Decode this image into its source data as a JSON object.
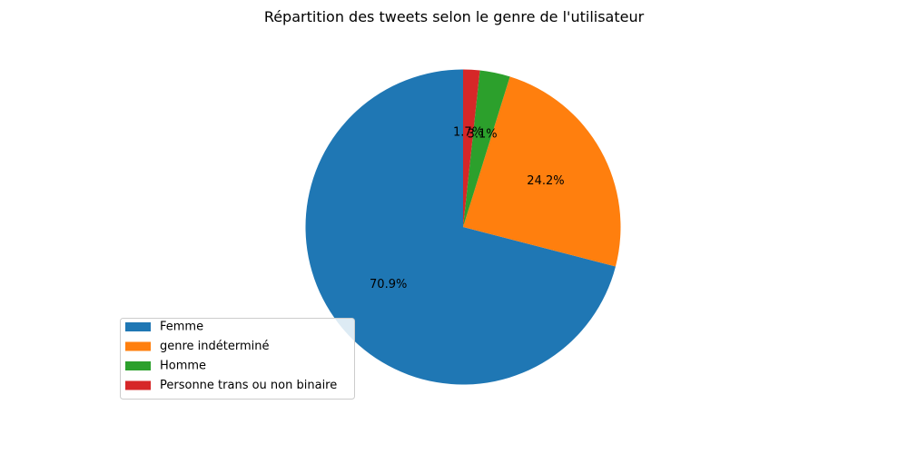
{
  "chart_data": {
    "type": "pie",
    "title": "Répartition des tweets selon le genre de l'utilisateur",
    "categories": [
      "Femme",
      "genre indéterminé",
      "Homme",
      "Personne trans ou non binaire"
    ],
    "values": [
      70.9,
      24.2,
      3.1,
      1.7
    ],
    "labels": [
      "70.9%",
      "24.2%",
      "3.1%",
      "1.7%"
    ],
    "colors": [
      "#1f77b4",
      "#ff7f0e",
      "#2ca02c",
      "#d62728"
    ],
    "start_angle_deg": 90,
    "direction": "counterclockwise",
    "legend_location": "lower-left"
  }
}
